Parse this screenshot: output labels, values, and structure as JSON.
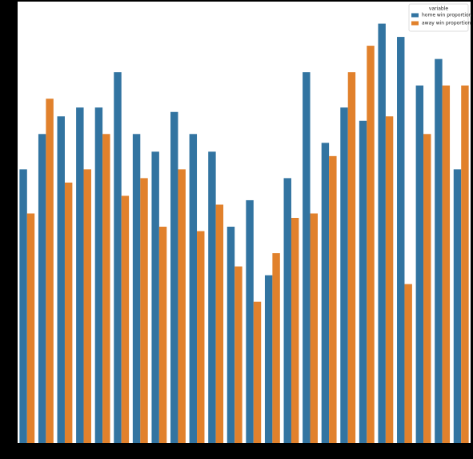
{
  "chart_data": {
    "type": "bar",
    "categories": [
      null,
      null,
      null,
      null,
      null,
      null,
      null,
      null,
      null,
      null,
      null,
      null,
      null,
      null,
      null,
      null,
      null,
      null,
      null,
      null,
      null,
      null,
      null,
      null
    ],
    "series": [
      {
        "name": "home win proportion",
        "color": "#3274a1",
        "values": [
          0.62,
          0.7,
          0.74,
          0.76,
          0.76,
          0.84,
          0.7,
          0.66,
          0.75,
          0.7,
          0.66,
          0.49,
          0.55,
          0.38,
          0.6,
          0.84,
          0.68,
          0.76,
          0.73,
          0.95,
          0.92,
          0.81,
          0.87,
          0.62
        ]
      },
      {
        "name": "away win proportion",
        "color": "#e1812c",
        "values": [
          0.52,
          0.78,
          0.59,
          0.62,
          0.7,
          0.56,
          0.6,
          0.49,
          0.62,
          0.48,
          0.54,
          0.4,
          0.32,
          0.43,
          0.51,
          0.52,
          0.65,
          0.84,
          0.9,
          0.74,
          0.36,
          0.7,
          0.81,
          0.81
        ]
      }
    ],
    "ylim": [
      0,
      1
    ],
    "legend_title": "variable",
    "legend_position": "upper-right"
  }
}
